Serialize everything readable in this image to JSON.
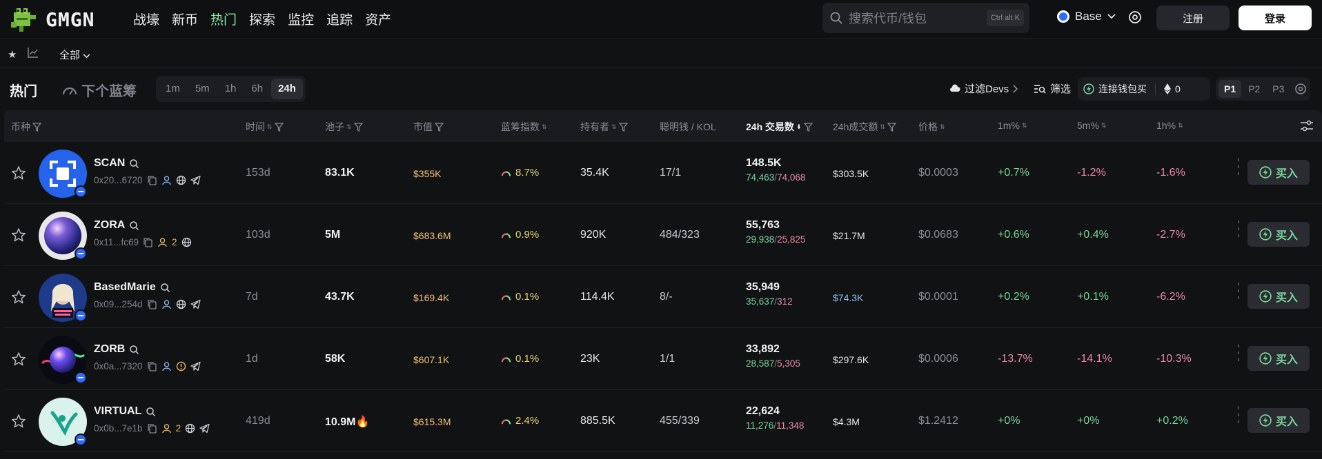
{
  "app": {
    "name": "GMGN"
  },
  "nav": [
    "战壕",
    "新币",
    "热门",
    "探索",
    "监控",
    "追踪",
    "资产"
  ],
  "nav_active": "热门",
  "search": {
    "placeholder": "搜索代币/钱包",
    "shortcut": "Ctrl alt K"
  },
  "chain": {
    "name": "Base"
  },
  "auth": {
    "register": "注册",
    "login": "登录"
  },
  "subbar": {
    "filter_all": "全部"
  },
  "tabs": {
    "hot": "热门",
    "next_bluechip": "下个蓝筹"
  },
  "timeframes": [
    "1m",
    "5m",
    "1h",
    "6h",
    "24h"
  ],
  "timeframe_active": "24h",
  "tools": {
    "filter_devs": "过滤Devs",
    "screen": "筛选",
    "connect_wallet": "连接钱包买",
    "wallet_amount": "0"
  },
  "pages": [
    "P1",
    "P2",
    "P3"
  ],
  "page_active": "P1",
  "columns": [
    "币种",
    "时间",
    "池子",
    "市值",
    "蓝筹指数",
    "持有者",
    "聪明钱 / KOL",
    "24h 交易数",
    "24h成交额",
    "价格",
    "1m%",
    "5m%",
    "1h%"
  ],
  "buy_label": "买入",
  "rows": [
    {
      "name": "SCAN",
      "address": "0x20...6720",
      "holder_count": "",
      "age": "153d",
      "liquidity": "83.1K",
      "liq_fire": false,
      "mcap": "$355K",
      "bluechip": "8.7%",
      "holders": "35.4K",
      "smart_kol": "17/1",
      "txs": "148.5K",
      "buys": "74,463",
      "sells": "74,068",
      "volume": "$303.5K",
      "volume_color": "#f0c077",
      "price": "$0.0003",
      "m1": "+0.7%",
      "m5": "-1.2%",
      "h1": "-1.6%"
    },
    {
      "name": "ZORA",
      "address": "0x11...fc69",
      "holder_count": "2",
      "age": "103d",
      "liquidity": "5M",
      "liq_fire": false,
      "mcap": "$683.6M",
      "bluechip": "0.9%",
      "holders": "920K",
      "smart_kol": "484/323",
      "txs": "55,763",
      "buys": "29,938",
      "sells": "25,825",
      "volume": "$21.7M",
      "volume_color": "#f0c077",
      "price": "$0.0683",
      "m1": "+0.6%",
      "m5": "+0.4%",
      "h1": "-2.7%"
    },
    {
      "name": "BasedMarie",
      "address": "0x09...254d",
      "holder_count": "",
      "age": "7d",
      "liquidity": "43.7K",
      "liq_fire": false,
      "mcap": "$169.4K",
      "bluechip": "0.1%",
      "holders": "114.4K",
      "smart_kol": "8/-",
      "txs": "35,949",
      "buys": "35,637",
      "sells": "312",
      "volume": "$74.3K",
      "volume_color": "#8fc3ee",
      "price": "$0.0001",
      "m1": "+0.2%",
      "m5": "+0.1%",
      "h1": "-6.2%"
    },
    {
      "name": "ZORB",
      "address": "0x0a...7320",
      "holder_count": "",
      "age": "1d",
      "liquidity": "58K",
      "liq_fire": false,
      "mcap": "$607.1K",
      "bluechip": "0.1%",
      "holders": "23K",
      "smart_kol": "1/1",
      "txs": "33,892",
      "buys": "28,587",
      "sells": "5,305",
      "volume": "$297.6K",
      "volume_color": "#f0c077",
      "price": "$0.0006",
      "m1": "-13.7%",
      "m5": "-14.1%",
      "h1": "-10.3%"
    },
    {
      "name": "VIRTUAL",
      "address": "0x0b...7e1b",
      "holder_count": "2",
      "age": "419d",
      "liquidity": "10.9M",
      "liq_fire": true,
      "mcap": "$615.3M",
      "bluechip": "2.4%",
      "holders": "885.5K",
      "smart_kol": "455/339",
      "txs": "22,624",
      "buys": "11,276",
      "sells": "11,348",
      "volume": "$4.3M",
      "volume_color": "#f0c077",
      "price": "$1.2412",
      "m1": "+0%",
      "m5": "+0%",
      "h1": "+0.2%"
    }
  ],
  "colors": {
    "accent_green": "#79d69b",
    "negative_pink": "#ec8aa5",
    "gold": "#f0c077",
    "base_blue": "#2f6bff"
  }
}
